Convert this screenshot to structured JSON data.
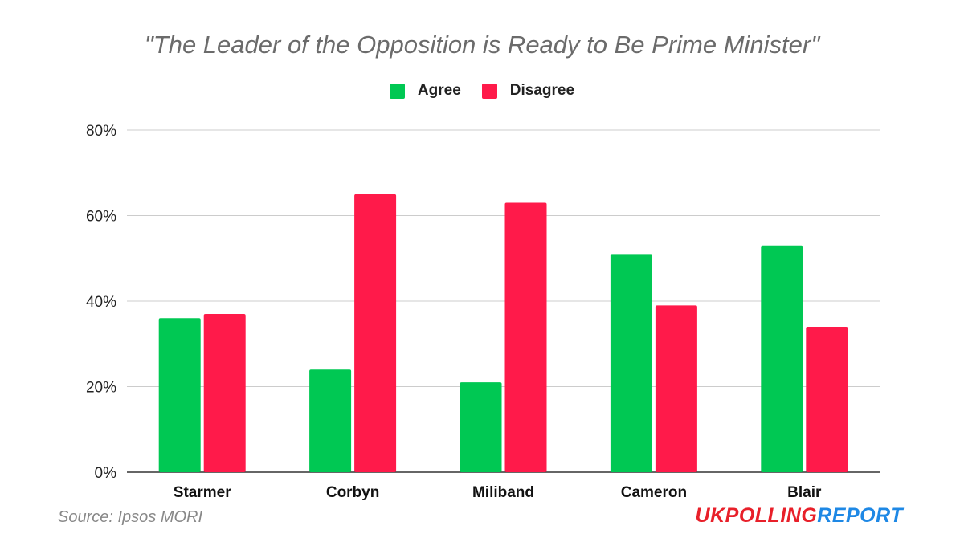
{
  "chart_data": {
    "type": "bar",
    "title": "\"The Leader of the Opposition is Ready to Be Prime Minister\"",
    "categories": [
      "Starmer",
      "Corbyn",
      "Miliband",
      "Cameron",
      "Blair"
    ],
    "series": [
      {
        "name": "Agree",
        "color": "#00c853",
        "values": [
          36,
          24,
          21,
          51,
          53
        ]
      },
      {
        "name": "Disagree",
        "color": "#ff1a4a",
        "values": [
          37,
          65,
          63,
          39,
          34
        ]
      }
    ],
    "ylim": [
      0,
      80
    ],
    "yticks": [
      0,
      20,
      40,
      60,
      80
    ],
    "ytick_labels": [
      "0%",
      "20%",
      "40%",
      "60%",
      "80%"
    ],
    "grid": true,
    "legend_position": "top"
  },
  "source": "Source: Ipsos MORI",
  "logo": {
    "part1": "UK",
    "part2": "POLLING",
    "part3": "REPORT",
    "color_red": "#e8202a",
    "color_blue": "#1e88e5"
  }
}
